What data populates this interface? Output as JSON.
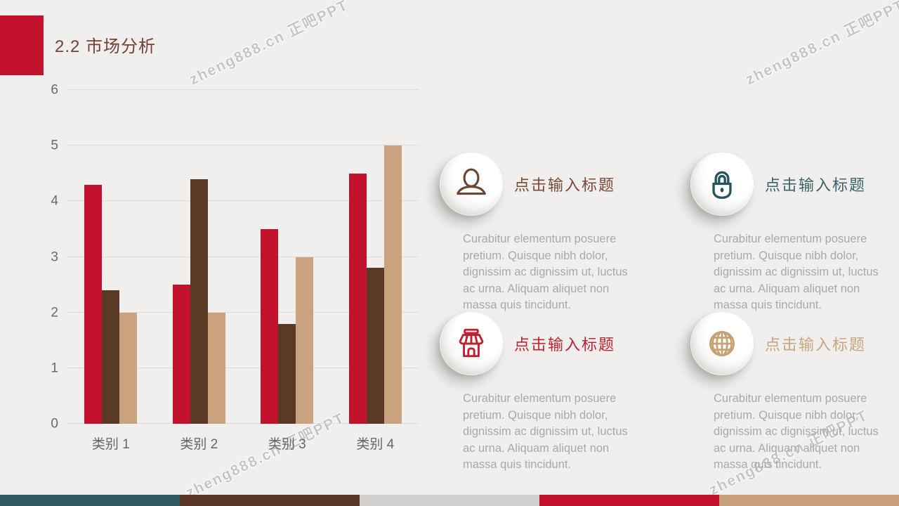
{
  "slide": {
    "title": "2.2 市场分析",
    "watermark": "zheng888.cn 正吧PPT",
    "background_color": "#f0efee",
    "accent_color": "#c2122d"
  },
  "chart_data": {
    "type": "bar",
    "title": "",
    "xlabel": "",
    "ylabel": "",
    "categories": [
      "类别 1",
      "类别 2",
      "类别 3",
      "类别 4"
    ],
    "series": [
      {
        "name": "red",
        "color": "#c2122d",
        "values": [
          4.3,
          2.5,
          3.5,
          4.5
        ]
      },
      {
        "name": "dark-brown",
        "color": "#5a3a26",
        "values": [
          2.4,
          4.4,
          1.8,
          2.8
        ]
      },
      {
        "name": "tan",
        "color": "#c9a37e",
        "values": [
          2.0,
          2.0,
          3.0,
          5.0
        ]
      }
    ],
    "ylim": [
      0,
      6
    ],
    "yticks": [
      0,
      1,
      2,
      3,
      4,
      5,
      6
    ],
    "grid": true,
    "legend": "none"
  },
  "cards": [
    {
      "icon": "user-icon",
      "icon_color": "#6a4733",
      "title_color": "#7a4a36",
      "title": "点击输入标题",
      "body": "Curabitur elementum posuere pretium. Quisque nibh dolor, dignissim ac dignissim ut, luctus ac urna. Aliquam aliquet non massa quis tincidunt."
    },
    {
      "icon": "lock-icon",
      "icon_color": "#24545c",
      "title_color": "#3d626b",
      "title": "点击输入标题",
      "body": "Curabitur elementum posuere pretium. Quisque nibh dolor, dignissim ac dignissim ut, luctus ac urna. Aliquam aliquet non massa quis tincidunt."
    },
    {
      "icon": "store-icon",
      "icon_color": "#bf2130",
      "title_color": "#c02330",
      "title": "点击输入标题",
      "body": "Curabitur elementum posuere pretium. Quisque nibh dolor, dignissim ac dignissim ut, luctus ac urna. Aliquam aliquet non massa quis tincidunt."
    },
    {
      "icon": "globe-icon",
      "icon_color": "#c5a271",
      "title_color": "#c7a77d",
      "title": "点击输入标题",
      "body": "Curabitur elementum posuere pretium. Quisque nibh dolor, dignissim ac dignissim ut, luctus ac urna. Aliquam aliquet non massa quis tincidunt."
    }
  ],
  "footer": {
    "segments": [
      "#2f5a61",
      "#5a3626",
      "#d3d1d0",
      "#c2122d",
      "#c7a17b"
    ]
  }
}
